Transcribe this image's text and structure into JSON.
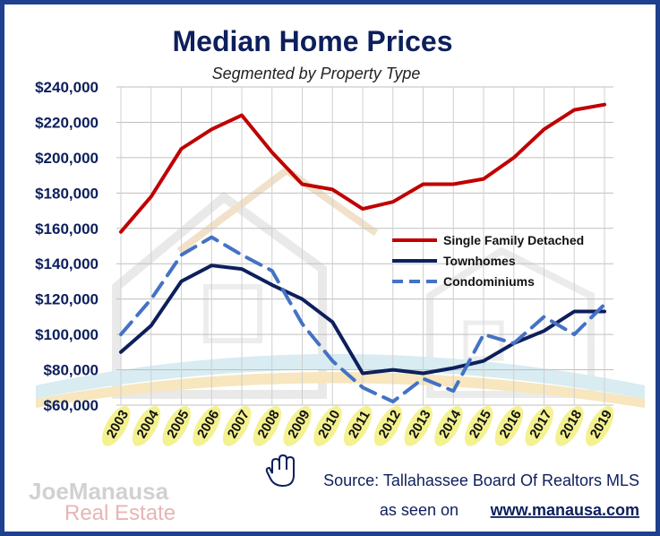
{
  "chart_data": {
    "type": "line",
    "title": "Median Home Prices",
    "subtitle": "Segmented by Property Type",
    "x": [
      "2003",
      "2004",
      "2005",
      "2006",
      "2007",
      "2008",
      "2009",
      "2010",
      "2011",
      "2012",
      "2013",
      "2014",
      "2015",
      "2016",
      "2017",
      "2018",
      "2019"
    ],
    "y_ticks": [
      "$60,000",
      "$80,000",
      "$100,000",
      "$120,000",
      "$140,000",
      "$160,000",
      "$180,000",
      "$200,000",
      "$220,000",
      "$240,000"
    ],
    "ylim": [
      60000,
      240000
    ],
    "grid": true,
    "legend_position": "center-right",
    "series": [
      {
        "name": "Single Family Detached",
        "color": "#c00000",
        "style": "solid",
        "values": [
          158000,
          178000,
          205000,
          216000,
          224000,
          203000,
          185000,
          182000,
          171000,
          175000,
          185000,
          185000,
          188000,
          200000,
          216000,
          227000,
          230000
        ]
      },
      {
        "name": "Townhomes",
        "color": "#0d1f5c",
        "style": "solid",
        "values": [
          90000,
          105000,
          130000,
          139000,
          137000,
          128000,
          120000,
          107000,
          78000,
          80000,
          78000,
          81000,
          85000,
          95000,
          102000,
          113000,
          113000
        ]
      },
      {
        "name": "Condominiums",
        "color": "#4472c4",
        "style": "dashed",
        "values": [
          100000,
          120000,
          145000,
          155000,
          145000,
          136000,
          106000,
          85000,
          70000,
          62000,
          75000,
          68000,
          100000,
          95000,
          110000,
          100000,
          117000
        ]
      }
    ]
  },
  "source": {
    "hand_icon": "pointing-hand-icon",
    "text": "Source: Tallahassee Board Of Realtors MLS",
    "seen_on": "as seen on",
    "url": "www.manausa.com"
  },
  "logo": {
    "line1": "JoeManausa",
    "line2": "Real Estate"
  },
  "colors": {
    "frame": "#1f3f8f",
    "title": "#0d1f5c",
    "tick_highlight": "#f3f08a"
  }
}
